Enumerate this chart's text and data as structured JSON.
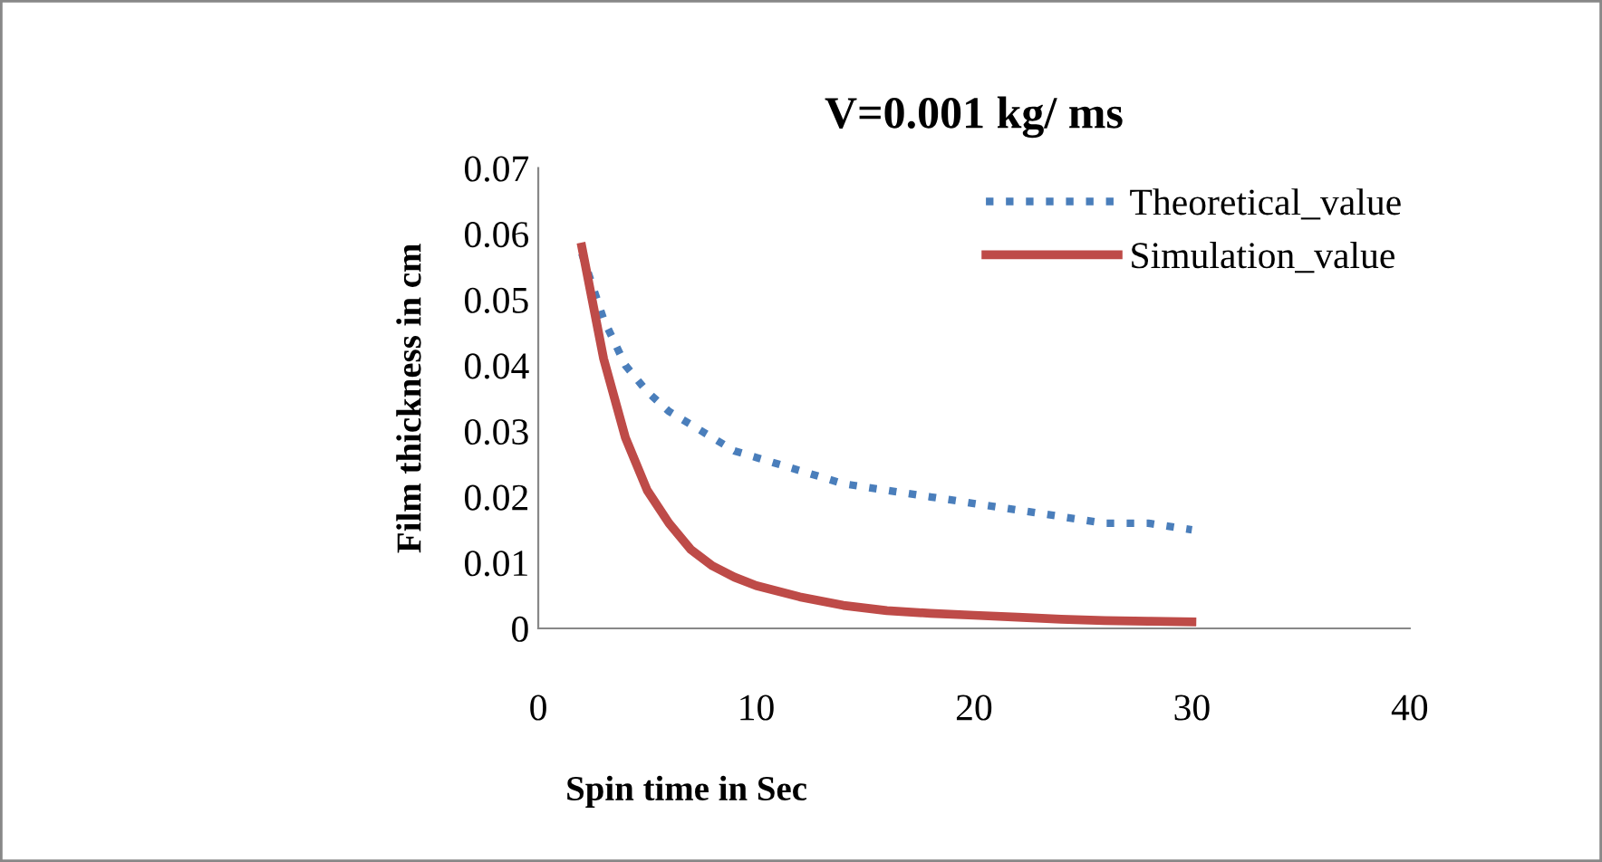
{
  "chart_data": {
    "type": "line",
    "title": "V=0.001 kg/ ms",
    "xlabel": "Spin time in Sec",
    "ylabel": "Film thickness in cm",
    "xlim": [
      0,
      40
    ],
    "xticks": [
      0,
      10,
      20,
      30,
      40
    ],
    "ylim": [
      0,
      0.07
    ],
    "yticks": [
      0,
      0.01,
      0.02,
      0.03,
      0.04,
      0.05,
      0.06,
      0.07
    ],
    "grid": false,
    "legend": "top right",
    "series": [
      {
        "name": "Theoretical_value",
        "color": "#4a7ebb",
        "line_style": "dotted",
        "x": [
          2,
          3,
          4,
          5,
          6,
          7,
          8,
          9,
          10,
          12,
          14,
          16,
          18,
          20,
          22,
          24,
          26,
          28,
          30
        ],
        "values": [
          0.057,
          0.047,
          0.04,
          0.036,
          0.033,
          0.031,
          0.029,
          0.027,
          0.026,
          0.024,
          0.022,
          0.021,
          0.02,
          0.019,
          0.018,
          0.017,
          0.016,
          0.016,
          0.015
        ]
      },
      {
        "name": "Simulation_value",
        "color": "#be4b48",
        "line_style": "solid",
        "x": [
          2,
          3,
          4,
          5,
          6,
          7,
          8,
          9,
          10,
          12,
          14,
          16,
          18,
          20,
          22,
          24,
          26,
          28,
          30
        ],
        "values": [
          0.058,
          0.041,
          0.029,
          0.021,
          0.016,
          0.012,
          0.0095,
          0.0078,
          0.0065,
          0.0048,
          0.0035,
          0.0027,
          0.0023,
          0.002,
          0.0017,
          0.0014,
          0.0012,
          0.0011,
          0.001
        ]
      }
    ]
  }
}
